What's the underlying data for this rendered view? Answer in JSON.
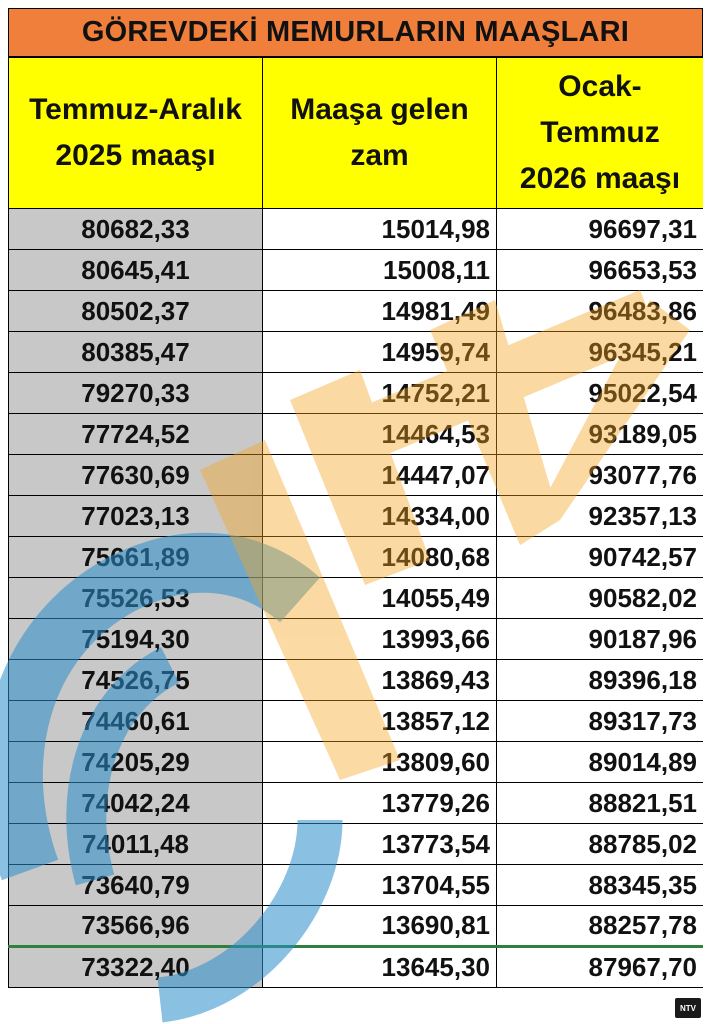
{
  "title": "GÖREVDEKİ MEMURLARIN MAAŞLARI",
  "columns": [
    {
      "line1": "Temmuz-Aralık",
      "line2": "2025 maaşı",
      "line3": ""
    },
    {
      "line1": "Maaşa gelen",
      "line2": "zam",
      "line3": ""
    },
    {
      "line1": "Ocak-",
      "line2": "Temmuz",
      "line3": "2026 maaşı"
    }
  ],
  "rows": [
    [
      "80682,33",
      "15014,98",
      "96697,31"
    ],
    [
      "80645,41",
      "15008,11",
      "96653,53"
    ],
    [
      "80502,37",
      "14981,49",
      "96483,86"
    ],
    [
      "80385,47",
      "14959,74",
      "96345,21"
    ],
    [
      "79270,33",
      "14752,21",
      "95022,54"
    ],
    [
      "77724,52",
      "14464,53",
      "93189,05"
    ],
    [
      "77630,69",
      "14447,07",
      "93077,76"
    ],
    [
      "77023,13",
      "14334,00",
      "92357,13"
    ],
    [
      "75661,89",
      "14080,68",
      "90742,57"
    ],
    [
      "75526,53",
      "14055,49",
      "90582,02"
    ],
    [
      "75194,30",
      "13993,66",
      "90187,96"
    ],
    [
      "74526,75",
      "13869,43",
      "89396,18"
    ],
    [
      "74460,61",
      "13857,12",
      "89317,73"
    ],
    [
      "74205,29",
      "13809,60",
      "89014,89"
    ],
    [
      "74042,24",
      "13779,26",
      "88821,51"
    ],
    [
      "74011,48",
      "13773,54",
      "88785,02"
    ],
    [
      "73640,79",
      "13704,55",
      "88345,35"
    ],
    [
      "73566,96",
      "13690,81",
      "88257,78"
    ],
    [
      "73322,40",
      "13645,30",
      "87967,70"
    ]
  ],
  "watermark_logo": "NTV",
  "colors": {
    "title_bg": "#f07f3c",
    "header_bg": "#ffff00",
    "first_col_bg": "#c8c8c8",
    "watermark_orange": "#f7a21b",
    "watermark_blue": "#2b8fcc"
  }
}
